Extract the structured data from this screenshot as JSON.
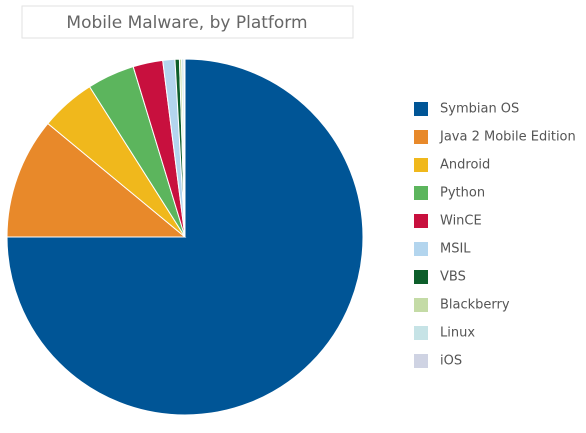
{
  "chart_data": {
    "type": "pie",
    "title": "Mobile Malware, by Platform",
    "categories": [
      "Symbian OS",
      "Java 2 Mobile Edition",
      "Android",
      "Python",
      "WinCE",
      "MSIL",
      "VBS",
      "Blackberry",
      "Linux",
      "iOS"
    ],
    "values": [
      75,
      11,
      5,
      4.3,
      2.7,
      1.1,
      0.4,
      0.2,
      0.2,
      0.1
    ],
    "colors": [
      "#005596",
      "#e8892a",
      "#f0b81c",
      "#5cb55d",
      "#c8103e",
      "#b3d5ee",
      "#0d5e2a",
      "#c4dba6",
      "#c6e3e6",
      "#cfd3e3"
    ],
    "legend": "right"
  }
}
